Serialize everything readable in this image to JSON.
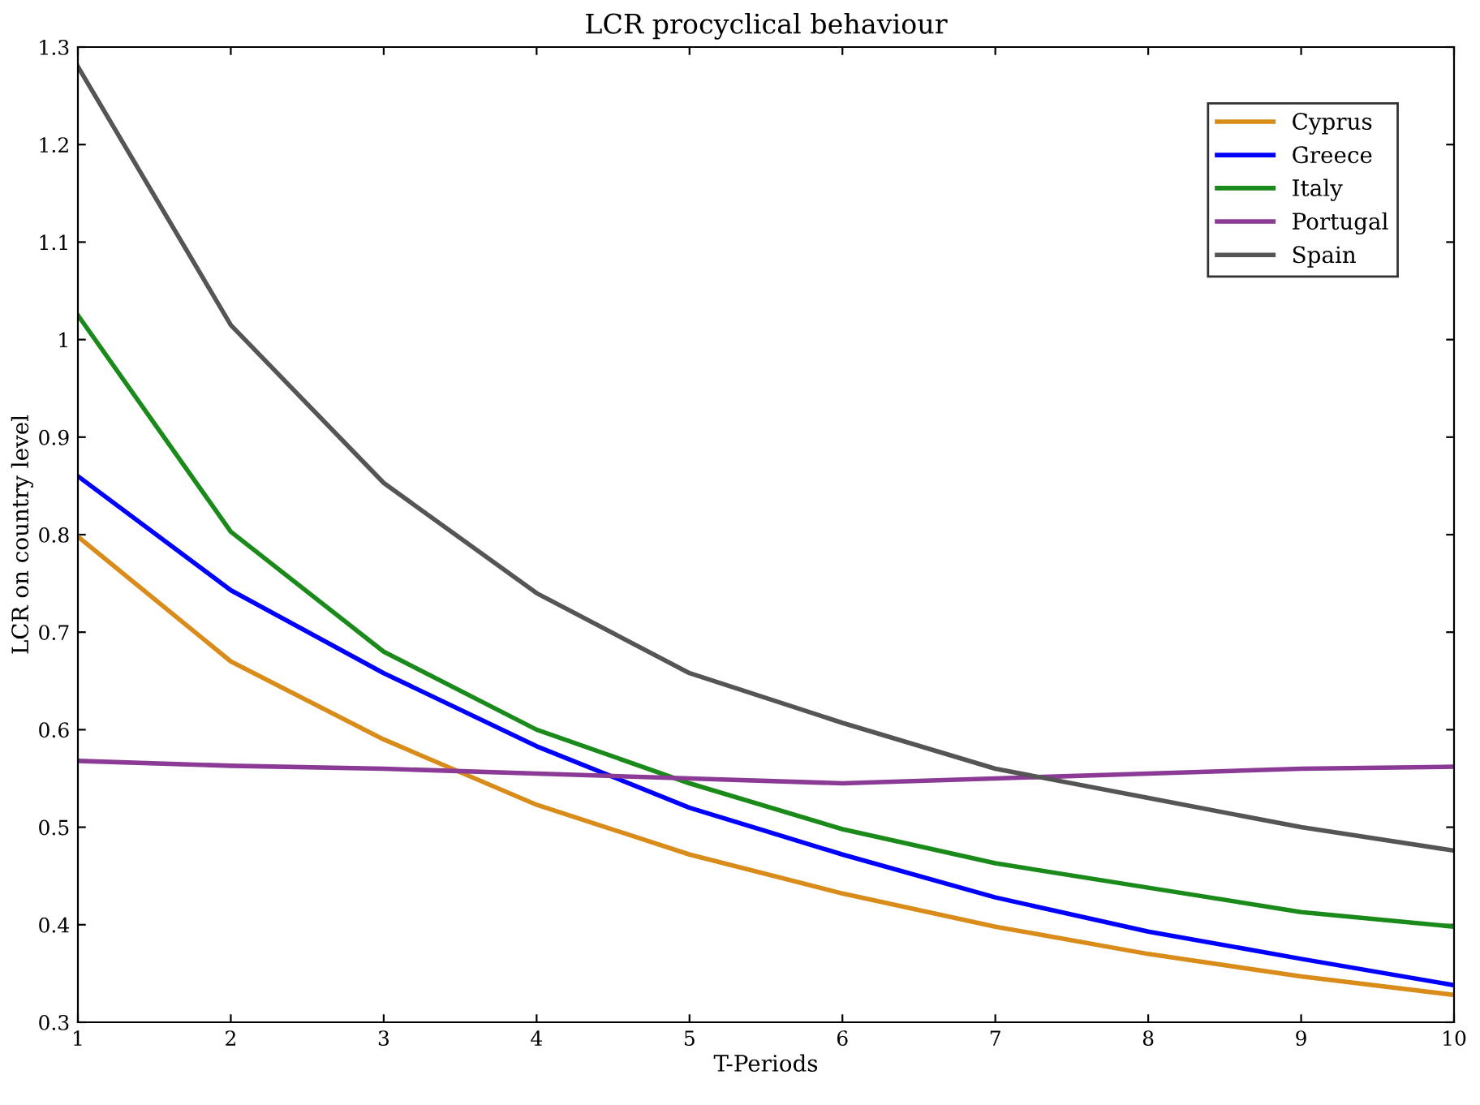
{
  "chart_data": {
    "type": "line",
    "title": "LCR procyclical behaviour",
    "xlabel": "T-Periods",
    "ylabel": "LCR on country level",
    "x": [
      1,
      2,
      3,
      4,
      5,
      6,
      7,
      8,
      9,
      10
    ],
    "series": [
      {
        "name": "Cyprus",
        "color": "#d98c1a",
        "values": [
          0.798,
          0.67,
          0.59,
          0.523,
          0.472,
          0.432,
          0.398,
          0.37,
          0.347,
          0.328
        ]
      },
      {
        "name": "Greece",
        "color": "#0000ff",
        "values": [
          0.86,
          0.743,
          0.658,
          0.583,
          0.52,
          0.472,
          0.428,
          0.393,
          0.365,
          0.338
        ]
      },
      {
        "name": "Italy",
        "color": "#1a8a1a",
        "values": [
          1.025,
          0.803,
          0.68,
          0.6,
          0.545,
          0.498,
          0.463,
          0.438,
          0.413,
          0.398
        ]
      },
      {
        "name": "Portugal",
        "color": "#8b3a96",
        "values": [
          0.568,
          0.563,
          0.56,
          0.555,
          0.55,
          0.545,
          0.55,
          0.555,
          0.56,
          0.562
        ]
      },
      {
        "name": "Spain",
        "color": "#555555",
        "values": [
          1.28,
          1.015,
          0.853,
          0.74,
          0.658,
          0.607,
          0.56,
          0.53,
          0.5,
          0.476
        ]
      }
    ],
    "xlim": [
      1,
      10
    ],
    "xticks": [
      1,
      2,
      3,
      4,
      5,
      6,
      7,
      8,
      9,
      10
    ],
    "ylim": [
      0.3,
      1.3
    ],
    "yticks": [
      0.3,
      0.4,
      0.5,
      0.6,
      0.7,
      0.8,
      0.9,
      1,
      1.1,
      1.2,
      1.3
    ],
    "grid": false,
    "legend": "top right",
    "marker": "none",
    "line_style": "solid"
  }
}
